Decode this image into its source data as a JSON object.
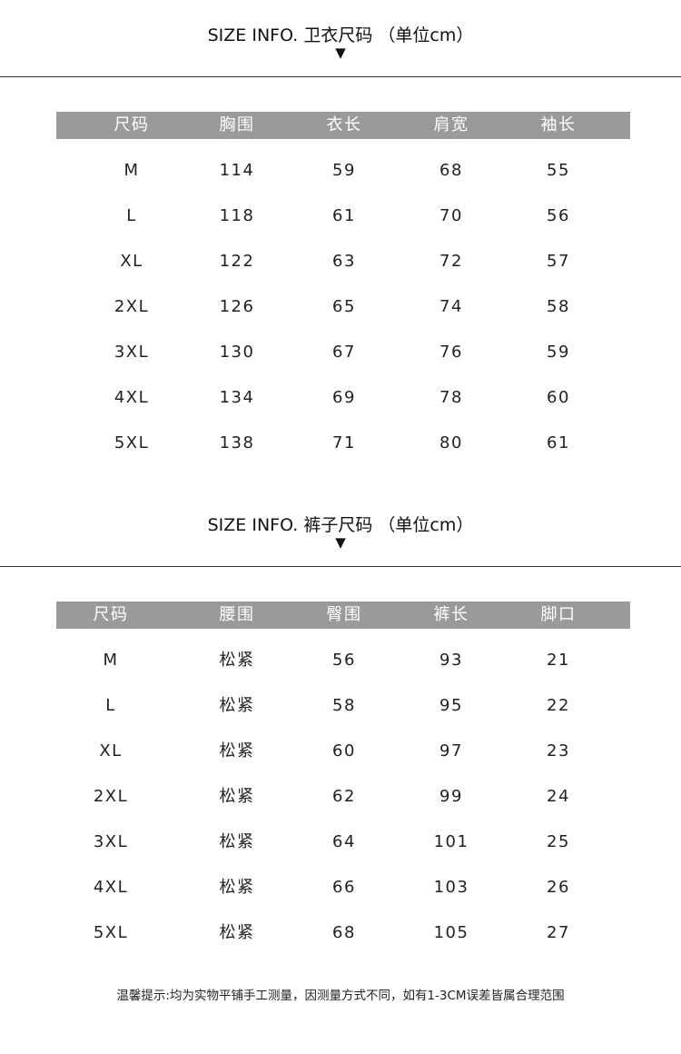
{
  "tops": {
    "title": "SIZE INFO. 卫衣尺码 （单位cm）",
    "arrow": "▼",
    "headers": [
      "尺码",
      "胸围",
      "衣长",
      "肩宽",
      "袖长"
    ],
    "rows": [
      [
        "M",
        "114",
        "59",
        "68",
        "55"
      ],
      [
        "L",
        "118",
        "61",
        "70",
        "56"
      ],
      [
        "XL",
        "122",
        "63",
        "72",
        "57"
      ],
      [
        "2XL",
        "126",
        "65",
        "74",
        "58"
      ],
      [
        "3XL",
        "130",
        "67",
        "76",
        "59"
      ],
      [
        "4XL",
        "134",
        "69",
        "78",
        "60"
      ],
      [
        "5XL",
        "138",
        "71",
        "80",
        "61"
      ]
    ]
  },
  "pants": {
    "title": "SIZE INFO. 裤子尺码 （单位cm）",
    "arrow": "▼",
    "headers": [
      "尺码",
      "腰围",
      "臀围",
      "裤长",
      "脚口"
    ],
    "rows": [
      [
        "M",
        "松紧",
        "56",
        "93",
        "21"
      ],
      [
        "L",
        "松紧",
        "58",
        "95",
        "22"
      ],
      [
        "XL",
        "松紧",
        "60",
        "97",
        "23"
      ],
      [
        "2XL",
        "松紧",
        "62",
        "99",
        "24"
      ],
      [
        "3XL",
        "松紧",
        "64",
        "101",
        "25"
      ],
      [
        "4XL",
        "松紧",
        "66",
        "103",
        "26"
      ],
      [
        "5XL",
        "松紧",
        "68",
        "105",
        "27"
      ]
    ]
  },
  "footer": "温馨提示:均为实物平铺手工测量，因测量方式不同，如有1-3CM误差皆属合理范围",
  "colors": {
    "header_bg": "#9a9a9a",
    "header_text": "#ffffff"
  }
}
